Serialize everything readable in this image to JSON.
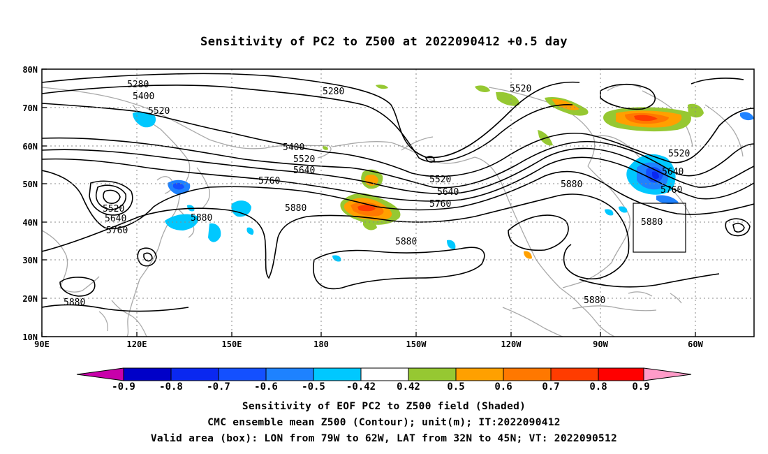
{
  "title": "Sensitivity of PC2 to Z500 at 2022090412 +0.5 day",
  "map": {
    "lat_labels": [
      "80N",
      "70N",
      "60N",
      "50N",
      "40N",
      "30N",
      "20N",
      "10N"
    ],
    "lon_labels": [
      "90E",
      "120E",
      "150E",
      "180",
      "150W",
      "120W",
      "90W",
      "60W"
    ],
    "contour_labels": [
      "5280",
      "5400",
      "5520",
      "5280",
      "5520",
      "5400",
      "5520",
      "5640",
      "5760",
      "5520",
      "5640",
      "5760",
      "5880",
      "5880",
      "5880",
      "5520",
      "5640",
      "5760",
      "5880",
      "5520",
      "5640",
      "5760",
      "5880",
      "5880",
      "5880"
    ],
    "valid_box": {
      "lon": [
        "79W",
        "62W"
      ],
      "lat": [
        "32N",
        "45N"
      ]
    }
  },
  "colorbar": {
    "labels": [
      "-0.9",
      "-0.8",
      "-0.7",
      "-0.6",
      "-0.5",
      "-0.42",
      "0.42",
      "0.5",
      "0.6",
      "0.7",
      "0.8",
      "0.9"
    ],
    "colors": [
      "#c800aa",
      "#0000c8",
      "#0a28f0",
      "#1450ff",
      "#1e82ff",
      "#00c8ff",
      "#ffffff",
      "#96c832",
      "#ffa000",
      "#ff7800",
      "#ff3c00",
      "#ff0000",
      "#ff9bc8"
    ]
  },
  "captions": {
    "line1": "Sensitivity of EOF PC2 to Z500 field (Shaded)",
    "line2": "CMC ensemble mean Z500 (Contour); unit(m); IT:2022090412",
    "line3": "Valid area (box): LON from 79W to 62W, LAT from 32N to 45N; VT: 2022090512"
  }
}
